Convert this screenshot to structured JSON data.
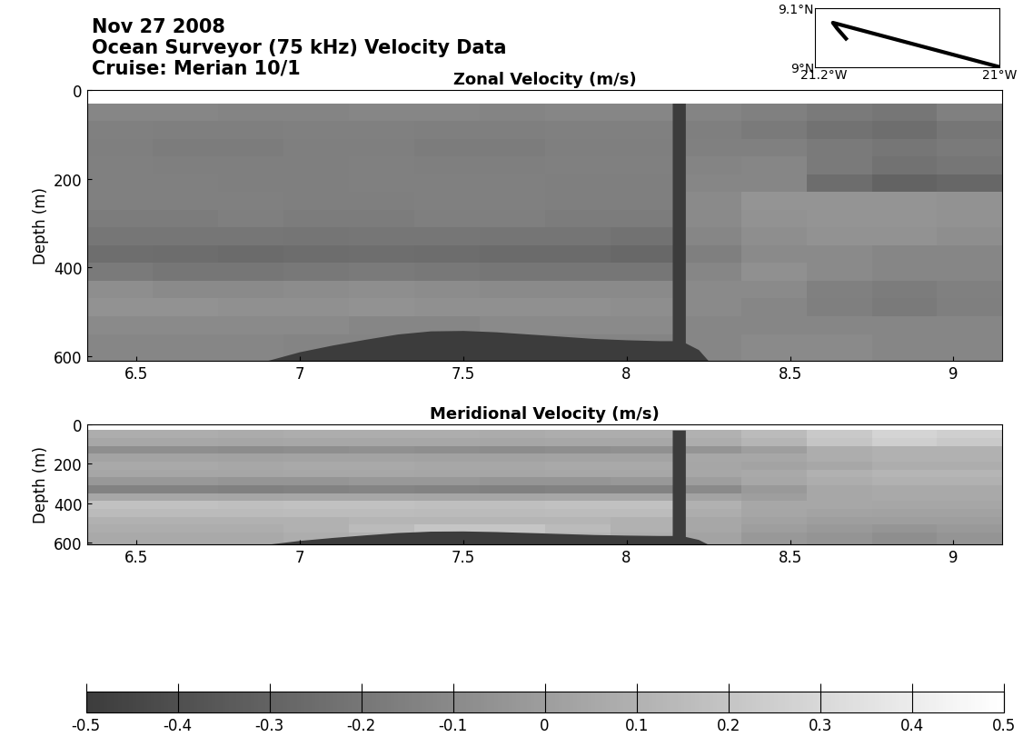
{
  "header": {
    "lines": [
      "Nov 27 2008",
      "Ocean Surveyor (75 kHz) Velocity Data",
      "Cruise: Merian 10/1"
    ]
  },
  "inset": {
    "type": "line",
    "color": "#000000",
    "x": [
      -21.0,
      -21.19,
      -21.185,
      -21.175
    ],
    "y": [
      9.0,
      9.075,
      9.065,
      9.048
    ],
    "xlim": [
      -21.21,
      -21.0
    ],
    "ylim": [
      9.0,
      9.1
    ],
    "xticks": [
      {
        "value": -21.2,
        "label": "21.2°W"
      },
      {
        "value": -21.0,
        "label": "21°W"
      }
    ],
    "yticks": [
      {
        "value": 9.0,
        "label": "9°N"
      },
      {
        "value": 9.1,
        "label": "9.1°N"
      }
    ]
  },
  "colorbar": {
    "range": [
      -0.5,
      0.5
    ],
    "ticks": [
      -0.5,
      -0.4,
      -0.3,
      -0.2,
      -0.1,
      0,
      0.1,
      0.2,
      0.3,
      0.4,
      0.5
    ],
    "colors": [
      "#3c3c3c",
      "#ffffff"
    ]
  },
  "chart_data": [
    {
      "type": "heatmap",
      "title": "Zonal Velocity (m/s)",
      "y_label": "Depth (m)",
      "xlim": [
        6.35,
        9.15
      ],
      "ylim": [
        610,
        0
      ],
      "xticks": [
        6.5,
        7,
        7.5,
        8,
        8.5,
        9
      ],
      "yticks": [
        0,
        200,
        400,
        600
      ],
      "x_edges": [
        6.35,
        6.55,
        6.75,
        6.95,
        7.15,
        7.35,
        7.55,
        7.75,
        7.95,
        8.15,
        8.35,
        8.55,
        8.75,
        8.95,
        9.15
      ],
      "y_edges": [
        30,
        70,
        110,
        150,
        190,
        230,
        270,
        310,
        350,
        390,
        430,
        470,
        510,
        550,
        610
      ],
      "cells": [
        [
          -0.12,
          -0.12,
          -0.13,
          -0.13,
          -0.12,
          -0.12,
          -0.13,
          -0.12,
          -0.12,
          -0.13,
          -0.15,
          -0.18,
          -0.2,
          -0.15
        ],
        [
          -0.15,
          -0.16,
          -0.16,
          -0.15,
          -0.15,
          -0.16,
          -0.16,
          -0.15,
          -0.15,
          -0.16,
          -0.18,
          -0.22,
          -0.24,
          -0.2
        ],
        [
          -0.16,
          -0.17,
          -0.17,
          -0.16,
          -0.16,
          -0.17,
          -0.17,
          -0.16,
          -0.16,
          -0.15,
          -0.15,
          -0.18,
          -0.2,
          -0.18
        ],
        [
          -0.15,
          -0.16,
          -0.16,
          -0.16,
          -0.15,
          -0.16,
          -0.16,
          -0.15,
          -0.15,
          -0.13,
          -0.12,
          -0.18,
          -0.22,
          -0.2
        ],
        [
          -0.15,
          -0.15,
          -0.16,
          -0.16,
          -0.15,
          -0.15,
          -0.15,
          -0.16,
          -0.16,
          -0.12,
          -0.12,
          -0.25,
          -0.3,
          -0.28
        ],
        [
          -0.15,
          -0.15,
          -0.15,
          -0.16,
          -0.16,
          -0.15,
          -0.15,
          -0.16,
          -0.16,
          -0.1,
          -0.05,
          -0.05,
          -0.05,
          -0.06
        ],
        [
          -0.17,
          -0.17,
          -0.16,
          -0.17,
          -0.17,
          -0.16,
          -0.16,
          -0.17,
          -0.17,
          -0.1,
          -0.06,
          -0.05,
          -0.05,
          -0.06
        ],
        [
          -0.2,
          -0.2,
          -0.2,
          -0.21,
          -0.2,
          -0.2,
          -0.21,
          -0.21,
          -0.22,
          -0.12,
          -0.08,
          -0.06,
          -0.06,
          -0.08
        ],
        [
          -0.24,
          -0.25,
          -0.26,
          -0.25,
          -0.24,
          -0.25,
          -0.26,
          -0.26,
          -0.27,
          -0.16,
          -0.1,
          -0.1,
          -0.12,
          -0.12
        ],
        [
          -0.18,
          -0.2,
          -0.2,
          -0.19,
          -0.18,
          -0.19,
          -0.2,
          -0.2,
          -0.2,
          -0.12,
          -0.07,
          -0.1,
          -0.12,
          -0.12
        ],
        [
          -0.08,
          -0.1,
          -0.1,
          -0.09,
          -0.08,
          -0.09,
          -0.1,
          -0.1,
          -0.1,
          -0.1,
          -0.1,
          -0.15,
          -0.17,
          -0.15
        ],
        [
          -0.06,
          -0.06,
          -0.07,
          -0.07,
          -0.06,
          -0.07,
          -0.07,
          -0.07,
          -0.08,
          -0.1,
          -0.12,
          -0.16,
          -0.18,
          -0.16
        ],
        [
          -0.1,
          -0.1,
          -0.1,
          -0.1,
          -0.12,
          -0.12,
          -0.1,
          -0.1,
          -0.1,
          -0.12,
          -0.12,
          -0.12,
          -0.12,
          -0.12
        ],
        [
          -0.12,
          -0.12,
          -0.12,
          -0.13,
          -0.13,
          -0.13,
          -0.13,
          -0.13,
          -0.13,
          -0.12,
          -0.1,
          -0.1,
          -0.12,
          -0.12
        ]
      ],
      "bottom": {
        "color": "#3c3c3c",
        "x": [
          6.9,
          7.0,
          7.1,
          7.2,
          7.3,
          7.4,
          7.5,
          7.6,
          7.7,
          7.8,
          7.9,
          8.0,
          8.1,
          8.14,
          8.14,
          8.18,
          8.18,
          8.22,
          8.25
        ],
        "depth": [
          610,
          590,
          575,
          562,
          550,
          543,
          542,
          545,
          550,
          555,
          560,
          563,
          565,
          565,
          30,
          30,
          570,
          585,
          610
        ]
      }
    },
    {
      "type": "heatmap",
      "title": "Meridional Velocity (m/s)",
      "y_label": "Depth (m)",
      "xlim": [
        6.35,
        9.15
      ],
      "ylim": [
        610,
        0
      ],
      "xticks": [
        6.5,
        7,
        7.5,
        8,
        8.5,
        9
      ],
      "yticks": [
        0,
        200,
        400,
        600
      ],
      "x_edges": [
        6.35,
        6.55,
        6.75,
        6.95,
        7.15,
        7.35,
        7.55,
        7.75,
        7.95,
        8.15,
        8.35,
        8.55,
        8.75,
        8.95,
        9.15
      ],
      "y_edges": [
        30,
        70,
        110,
        150,
        190,
        230,
        270,
        310,
        350,
        390,
        430,
        470,
        510,
        550,
        610
      ],
      "cells": [
        [
          0.08,
          0.08,
          0.07,
          0.08,
          0.08,
          0.08,
          0.07,
          0.08,
          0.08,
          0.1,
          0.15,
          0.22,
          0.28,
          0.25
        ],
        [
          0.05,
          0.05,
          0.04,
          0.05,
          0.05,
          0.05,
          0.04,
          0.05,
          0.05,
          0.08,
          0.12,
          0.2,
          0.25,
          0.22
        ],
        [
          -0.08,
          -0.08,
          -0.09,
          -0.08,
          -0.07,
          -0.08,
          -0.09,
          -0.08,
          -0.07,
          -0.05,
          0.0,
          0.08,
          0.1,
          0.1
        ],
        [
          0.03,
          0.03,
          0.02,
          0.03,
          0.03,
          0.02,
          0.02,
          0.03,
          0.03,
          0.05,
          0.05,
          0.08,
          0.1,
          0.1
        ],
        [
          0.06,
          0.06,
          0.05,
          0.06,
          0.06,
          0.05,
          0.05,
          0.06,
          0.06,
          0.04,
          0.03,
          0.05,
          0.08,
          0.08
        ],
        [
          0.04,
          0.04,
          0.04,
          0.05,
          0.05,
          0.04,
          0.04,
          0.05,
          0.05,
          0.05,
          0.06,
          0.1,
          0.12,
          0.12
        ],
        [
          -0.03,
          -0.03,
          -0.04,
          -0.04,
          -0.03,
          -0.03,
          -0.04,
          -0.04,
          -0.03,
          0.0,
          0.05,
          0.08,
          0.1,
          0.1
        ],
        [
          -0.14,
          -0.14,
          -0.15,
          -0.14,
          -0.13,
          -0.14,
          -0.15,
          -0.14,
          -0.14,
          -0.1,
          -0.02,
          0.05,
          0.06,
          0.06
        ],
        [
          0.05,
          0.05,
          0.04,
          0.05,
          0.05,
          0.04,
          0.04,
          0.05,
          0.05,
          0.03,
          0.0,
          0.05,
          0.06,
          0.06
        ],
        [
          0.18,
          0.18,
          0.17,
          0.18,
          0.18,
          0.17,
          0.17,
          0.18,
          0.18,
          0.1,
          0.05,
          0.05,
          0.04,
          0.04
        ],
        [
          0.15,
          0.15,
          0.15,
          0.16,
          0.16,
          0.15,
          0.15,
          0.16,
          0.16,
          0.08,
          0.04,
          0.03,
          0.02,
          0.02
        ],
        [
          0.1,
          0.1,
          0.1,
          0.1,
          0.12,
          0.12,
          0.12,
          0.12,
          0.1,
          0.05,
          0.02,
          0.0,
          0.0,
          0.0
        ],
        [
          0.08,
          0.08,
          0.08,
          0.1,
          0.15,
          0.2,
          0.2,
          0.15,
          0.1,
          0.05,
          0.0,
          -0.02,
          -0.04,
          -0.02
        ],
        [
          0.06,
          0.06,
          0.06,
          0.08,
          0.1,
          0.15,
          0.15,
          0.12,
          0.08,
          0.03,
          -0.03,
          -0.05,
          -0.08,
          -0.05
        ]
      ],
      "bottom": {
        "color": "#3c3c3c",
        "x": [
          6.9,
          7.0,
          7.1,
          7.2,
          7.3,
          7.4,
          7.5,
          7.6,
          7.7,
          7.8,
          7.9,
          8.0,
          8.1,
          8.14,
          8.14,
          8.18,
          8.18,
          8.22,
          8.25
        ],
        "depth": [
          610,
          590,
          575,
          562,
          550,
          543,
          542,
          545,
          550,
          555,
          560,
          563,
          565,
          565,
          30,
          30,
          570,
          585,
          610
        ]
      }
    }
  ]
}
